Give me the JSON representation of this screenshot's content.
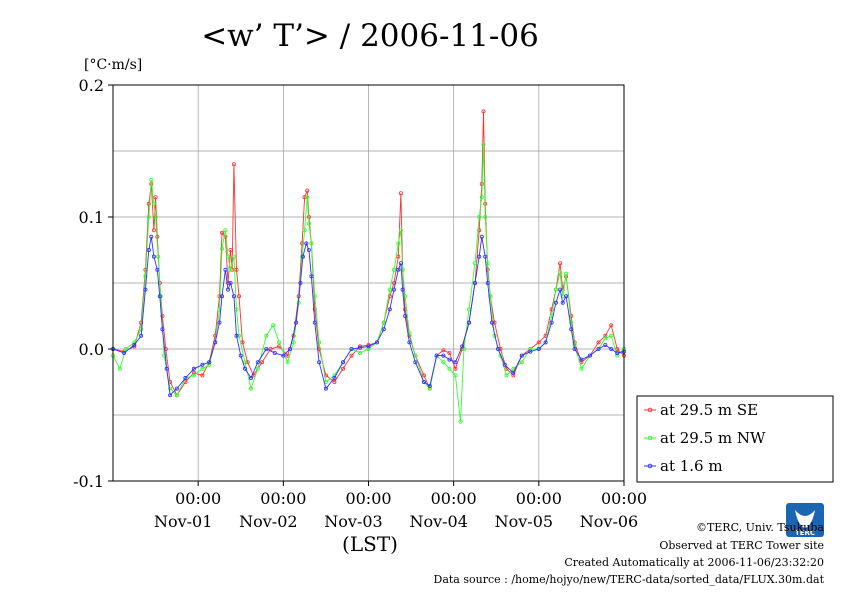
{
  "chart_data": {
    "type": "line",
    "title": "<w’ T’> / 2006-11-06",
    "ylabel": "[°C·m/s]",
    "xlabel": "(LST)",
    "ylim": [
      -0.1,
      0.2
    ],
    "xlim": [
      0,
      6
    ],
    "yticks": [
      {
        "value": 0.2,
        "label": "0.2"
      },
      {
        "value": 0.1,
        "label": "0.1"
      },
      {
        "value": 0.0,
        "label": "0.0"
      },
      {
        "value": -0.1,
        "label": "-0.1"
      }
    ],
    "xticks": [
      {
        "value": 1,
        "time": "00:00",
        "date": "Nov-01"
      },
      {
        "value": 2,
        "time": "00:00",
        "date": "Nov-02"
      },
      {
        "value": 3,
        "time": "00:00",
        "date": "Nov-03"
      },
      {
        "value": 4,
        "time": "00:00",
        "date": "Nov-04"
      },
      {
        "value": 5,
        "time": "00:00",
        "date": "Nov-05"
      },
      {
        "value": 6,
        "time": "00:00",
        "date": "Nov-06"
      }
    ],
    "grid": true,
    "legend_position": "right",
    "series": [
      {
        "name": "at 29.5 m SE",
        "color": "#ff3030",
        "points": [
          [
            0.0,
            0.0
          ],
          [
            0.13,
            -0.002
          ],
          [
            0.25,
            0.002
          ],
          [
            0.33,
            0.02
          ],
          [
            0.38,
            0.06
          ],
          [
            0.42,
            0.11
          ],
          [
            0.45,
            0.125
          ],
          [
            0.48,
            0.09
          ],
          [
            0.5,
            0.115
          ],
          [
            0.52,
            0.085
          ],
          [
            0.55,
            0.05
          ],
          [
            0.58,
            0.025
          ],
          [
            0.62,
            0.0
          ],
          [
            0.67,
            -0.025
          ],
          [
            0.75,
            -0.035
          ],
          [
            0.85,
            -0.025
          ],
          [
            0.95,
            -0.018
          ],
          [
            1.05,
            -0.02
          ],
          [
            1.13,
            -0.01
          ],
          [
            1.2,
            0.01
          ],
          [
            1.25,
            0.04
          ],
          [
            1.28,
            0.088
          ],
          [
            1.32,
            0.085
          ],
          [
            1.35,
            0.05
          ],
          [
            1.38,
            0.075
          ],
          [
            1.4,
            0.06
          ],
          [
            1.42,
            0.14
          ],
          [
            1.45,
            0.06
          ],
          [
            1.48,
            0.04
          ],
          [
            1.52,
            0.005
          ],
          [
            1.58,
            -0.01
          ],
          [
            1.65,
            -0.02
          ],
          [
            1.75,
            -0.01
          ],
          [
            1.85,
            0.0
          ],
          [
            1.95,
            0.002
          ],
          [
            2.05,
            -0.005
          ],
          [
            2.12,
            0.01
          ],
          [
            2.18,
            0.04
          ],
          [
            2.22,
            0.08
          ],
          [
            2.25,
            0.115
          ],
          [
            2.28,
            0.12
          ],
          [
            2.3,
            0.1
          ],
          [
            2.33,
            0.08
          ],
          [
            2.37,
            0.03
          ],
          [
            2.42,
            0.0
          ],
          [
            2.5,
            -0.02
          ],
          [
            2.6,
            -0.025
          ],
          [
            2.7,
            -0.015
          ],
          [
            2.8,
            -0.005
          ],
          [
            2.9,
            0.002
          ],
          [
            3.0,
            0.003
          ],
          [
            3.1,
            0.005
          ],
          [
            3.18,
            0.02
          ],
          [
            3.25,
            0.04
          ],
          [
            3.3,
            0.05
          ],
          [
            3.35,
            0.07
          ],
          [
            3.38,
            0.118
          ],
          [
            3.4,
            0.06
          ],
          [
            3.43,
            0.03
          ],
          [
            3.48,
            0.01
          ],
          [
            3.55,
            -0.005
          ],
          [
            3.65,
            -0.02
          ],
          [
            3.72,
            -0.03
          ],
          [
            3.8,
            -0.005
          ],
          [
            3.88,
            -0.001
          ],
          [
            3.95,
            -0.003
          ],
          [
            4.02,
            -0.015
          ],
          [
            4.1,
            0.0
          ],
          [
            4.18,
            0.02
          ],
          [
            4.25,
            0.05
          ],
          [
            4.3,
            0.09
          ],
          [
            4.33,
            0.125
          ],
          [
            4.35,
            0.18
          ],
          [
            4.37,
            0.11
          ],
          [
            4.4,
            0.06
          ],
          [
            4.43,
            0.04
          ],
          [
            4.48,
            0.02
          ],
          [
            4.55,
            0.0
          ],
          [
            4.62,
            -0.015
          ],
          [
            4.7,
            -0.02
          ],
          [
            4.8,
            -0.005
          ],
          [
            4.9,
            0.0
          ],
          [
            5.0,
            0.005
          ],
          [
            5.08,
            0.01
          ],
          [
            5.15,
            0.03
          ],
          [
            5.2,
            0.045
          ],
          [
            5.25,
            0.065
          ],
          [
            5.28,
            0.045
          ],
          [
            5.32,
            0.055
          ],
          [
            5.38,
            0.025
          ],
          [
            5.42,
            0.005
          ],
          [
            5.5,
            -0.01
          ],
          [
            5.6,
            -0.005
          ],
          [
            5.7,
            0.005
          ],
          [
            5.78,
            0.01
          ],
          [
            5.85,
            0.018
          ],
          [
            5.92,
            0.0
          ],
          [
            6.0,
            -0.005
          ]
        ]
      },
      {
        "name": "at 29.5 m NW",
        "color": "#30ff30",
        "points": [
          [
            0.0,
            -0.005
          ],
          [
            0.08,
            -0.015
          ],
          [
            0.15,
            0.0
          ],
          [
            0.25,
            0.005
          ],
          [
            0.33,
            0.015
          ],
          [
            0.38,
            0.055
          ],
          [
            0.42,
            0.1
          ],
          [
            0.45,
            0.128
          ],
          [
            0.48,
            0.11
          ],
          [
            0.5,
            0.1
          ],
          [
            0.53,
            0.07
          ],
          [
            0.56,
            0.04
          ],
          [
            0.6,
            -0.005
          ],
          [
            0.67,
            -0.03
          ],
          [
            0.75,
            -0.035
          ],
          [
            0.85,
            -0.022
          ],
          [
            0.95,
            -0.02
          ],
          [
            1.05,
            -0.015
          ],
          [
            1.13,
            -0.012
          ],
          [
            1.2,
            0.005
          ],
          [
            1.25,
            0.03
          ],
          [
            1.28,
            0.076
          ],
          [
            1.32,
            0.09
          ],
          [
            1.35,
            0.07
          ],
          [
            1.38,
            0.06
          ],
          [
            1.42,
            0.07
          ],
          [
            1.45,
            0.03
          ],
          [
            1.48,
            0.01
          ],
          [
            1.55,
            -0.01
          ],
          [
            1.62,
            -0.03
          ],
          [
            1.7,
            -0.015
          ],
          [
            1.8,
            0.01
          ],
          [
            1.88,
            0.018
          ],
          [
            1.95,
            0.005
          ],
          [
            2.05,
            -0.01
          ],
          [
            2.12,
            0.005
          ],
          [
            2.18,
            0.035
          ],
          [
            2.22,
            0.07
          ],
          [
            2.25,
            0.09
          ],
          [
            2.28,
            0.115
          ],
          [
            2.3,
            0.095
          ],
          [
            2.33,
            0.08
          ],
          [
            2.37,
            0.04
          ],
          [
            2.42,
            0.005
          ],
          [
            2.5,
            -0.025
          ],
          [
            2.6,
            -0.02
          ],
          [
            2.7,
            -0.01
          ],
          [
            2.8,
            0.0
          ],
          [
            2.9,
            -0.003
          ],
          [
            3.0,
            0.0
          ],
          [
            3.1,
            0.005
          ],
          [
            3.18,
            0.02
          ],
          [
            3.25,
            0.045
          ],
          [
            3.3,
            0.06
          ],
          [
            3.35,
            0.08
          ],
          [
            3.38,
            0.09
          ],
          [
            3.4,
            0.06
          ],
          [
            3.43,
            0.04
          ],
          [
            3.48,
            0.012
          ],
          [
            3.55,
            -0.005
          ],
          [
            3.65,
            -0.025
          ],
          [
            3.72,
            -0.03
          ],
          [
            3.8,
            -0.005
          ],
          [
            3.88,
            -0.01
          ],
          [
            3.95,
            -0.015
          ],
          [
            4.02,
            -0.02
          ],
          [
            4.08,
            -0.055
          ],
          [
            4.12,
            0.0
          ],
          [
            4.18,
            0.03
          ],
          [
            4.25,
            0.065
          ],
          [
            4.3,
            0.1
          ],
          [
            4.33,
            0.115
          ],
          [
            4.35,
            0.155
          ],
          [
            4.37,
            0.1
          ],
          [
            4.4,
            0.065
          ],
          [
            4.43,
            0.04
          ],
          [
            4.48,
            0.01
          ],
          [
            4.55,
            -0.005
          ],
          [
            4.62,
            -0.02
          ],
          [
            4.7,
            -0.015
          ],
          [
            4.8,
            -0.01
          ],
          [
            4.9,
            0.0
          ],
          [
            5.0,
            0.0
          ],
          [
            5.08,
            0.005
          ],
          [
            5.15,
            0.025
          ],
          [
            5.2,
            0.045
          ],
          [
            5.25,
            0.058
          ],
          [
            5.28,
            0.04
          ],
          [
            5.32,
            0.057
          ],
          [
            5.38,
            0.02
          ],
          [
            5.42,
            0.003
          ],
          [
            5.5,
            -0.015
          ],
          [
            5.6,
            -0.005
          ],
          [
            5.7,
            0.0
          ],
          [
            5.78,
            0.008
          ],
          [
            5.85,
            0.01
          ],
          [
            5.92,
            -0.005
          ],
          [
            6.0,
            0.0
          ]
        ]
      },
      {
        "name": "at 1.6 m",
        "color": "#3030ff",
        "points": [
          [
            0.0,
            0.0
          ],
          [
            0.13,
            -0.003
          ],
          [
            0.25,
            0.003
          ],
          [
            0.33,
            0.01
          ],
          [
            0.38,
            0.045
          ],
          [
            0.42,
            0.075
          ],
          [
            0.45,
            0.085
          ],
          [
            0.48,
            0.07
          ],
          [
            0.52,
            0.06
          ],
          [
            0.55,
            0.04
          ],
          [
            0.58,
            0.015
          ],
          [
            0.63,
            -0.015
          ],
          [
            0.67,
            -0.035
          ],
          [
            0.75,
            -0.03
          ],
          [
            0.85,
            -0.022
          ],
          [
            0.95,
            -0.015
          ],
          [
            1.05,
            -0.012
          ],
          [
            1.13,
            -0.01
          ],
          [
            1.2,
            0.005
          ],
          [
            1.25,
            0.02
          ],
          [
            1.28,
            0.04
          ],
          [
            1.32,
            0.06
          ],
          [
            1.35,
            0.045
          ],
          [
            1.38,
            0.05
          ],
          [
            1.42,
            0.04
          ],
          [
            1.45,
            0.01
          ],
          [
            1.5,
            -0.005
          ],
          [
            1.55,
            -0.015
          ],
          [
            1.62,
            -0.022
          ],
          [
            1.7,
            -0.01
          ],
          [
            1.8,
            0.0
          ],
          [
            1.9,
            -0.003
          ],
          [
            2.0,
            -0.005
          ],
          [
            2.08,
            0.0
          ],
          [
            2.15,
            0.02
          ],
          [
            2.2,
            0.05
          ],
          [
            2.23,
            0.07
          ],
          [
            2.27,
            0.08
          ],
          [
            2.3,
            0.075
          ],
          [
            2.33,
            0.055
          ],
          [
            2.37,
            0.02
          ],
          [
            2.42,
            -0.01
          ],
          [
            2.5,
            -0.03
          ],
          [
            2.6,
            -0.022
          ],
          [
            2.7,
            -0.01
          ],
          [
            2.8,
            0.0
          ],
          [
            2.9,
            0.001
          ],
          [
            3.0,
            0.002
          ],
          [
            3.1,
            0.005
          ],
          [
            3.18,
            0.015
          ],
          [
            3.25,
            0.03
          ],
          [
            3.3,
            0.045
          ],
          [
            3.35,
            0.06
          ],
          [
            3.38,
            0.065
          ],
          [
            3.4,
            0.045
          ],
          [
            3.43,
            0.025
          ],
          [
            3.48,
            0.005
          ],
          [
            3.55,
            -0.01
          ],
          [
            3.65,
            -0.025
          ],
          [
            3.72,
            -0.028
          ],
          [
            3.8,
            -0.005
          ],
          [
            3.88,
            -0.005
          ],
          [
            3.95,
            -0.008
          ],
          [
            4.02,
            -0.01
          ],
          [
            4.1,
            0.002
          ],
          [
            4.18,
            0.02
          ],
          [
            4.25,
            0.05
          ],
          [
            4.3,
            0.07
          ],
          [
            4.33,
            0.085
          ],
          [
            4.37,
            0.07
          ],
          [
            4.4,
            0.05
          ],
          [
            4.45,
            0.02
          ],
          [
            4.52,
            0.0
          ],
          [
            4.6,
            -0.012
          ],
          [
            4.7,
            -0.018
          ],
          [
            4.8,
            -0.005
          ],
          [
            4.9,
            -0.002
          ],
          [
            5.0,
            0.0
          ],
          [
            5.08,
            0.005
          ],
          [
            5.15,
            0.02
          ],
          [
            5.2,
            0.035
          ],
          [
            5.25,
            0.045
          ],
          [
            5.28,
            0.035
          ],
          [
            5.32,
            0.04
          ],
          [
            5.38,
            0.015
          ],
          [
            5.42,
            0.0
          ],
          [
            5.5,
            -0.008
          ],
          [
            5.6,
            -0.005
          ],
          [
            5.7,
            0.0
          ],
          [
            5.78,
            0.003
          ],
          [
            5.85,
            0.0
          ],
          [
            5.92,
            -0.003
          ],
          [
            6.0,
            -0.002
          ]
        ]
      }
    ]
  },
  "footer": {
    "copyright": "©TERC, Univ. Tsukuba",
    "observed": "Observed at TERC Tower site",
    "created": "Created Automatically at 2006-11-06/23:32:20",
    "source": "Data source : /home/hojyo/new/TERC-data/sorted_data/FLUX.30m.dat"
  },
  "logo": {
    "text": "TERC",
    "color": "#1a66b3"
  }
}
